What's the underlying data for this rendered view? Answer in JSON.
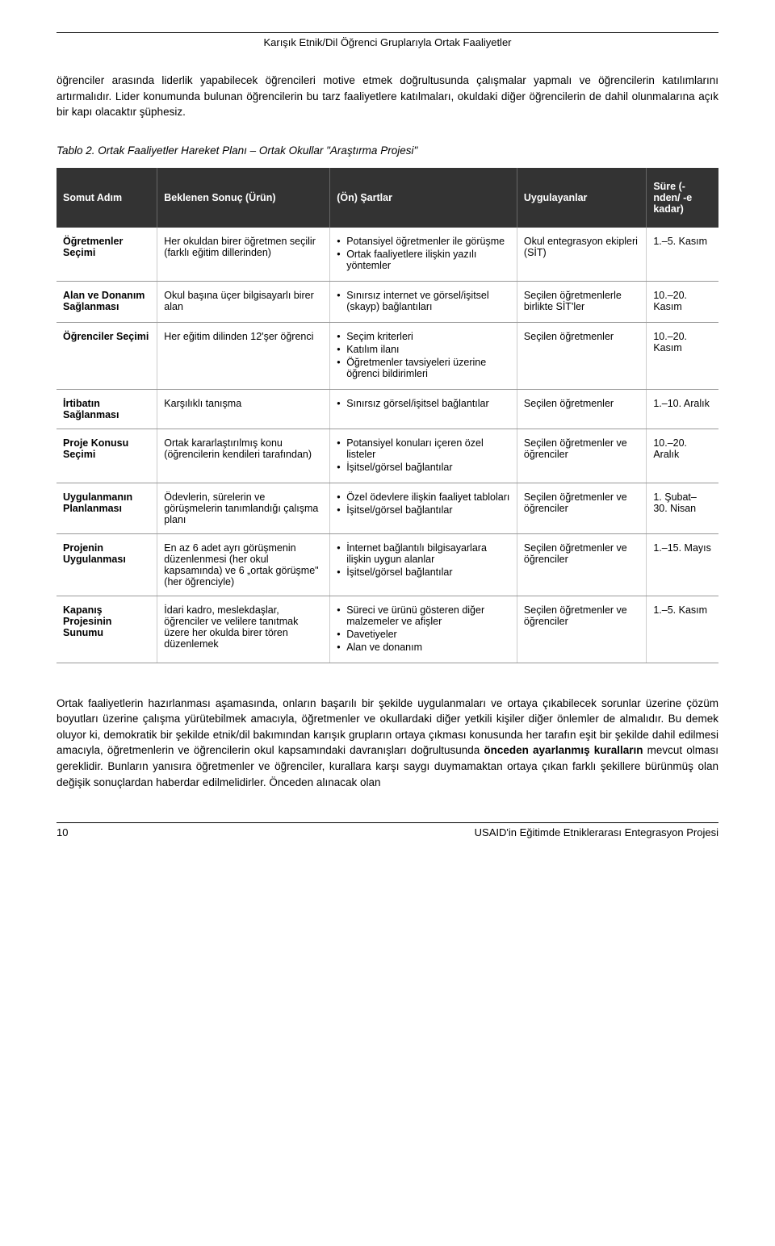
{
  "header": {
    "title": "Karışık Etnik/Dil Öğrenci Gruplarıyla Ortak Faaliyetler"
  },
  "intro": "öğrenciler arasında liderlik yapabilecek öğrencileri motive etmek doğrultusunda çalışmalar yapmalı ve öğrencilerin katılımlarını artırmalıdır. Lider konumunda bulunan öğrencilerin bu tarz faaliyetlere katılmaları, okuldaki diğer öğrencilerin de dahil olunmalarına açık bir kapı olacaktır şüphesiz.",
  "table_caption": "Tablo 2. Ortak Faaliyetler Hareket Planı – Ortak Okullar \"Araştırma Projesi\"",
  "columns": {
    "c1": "Somut Adım",
    "c2": "Beklenen Sonuç (Ürün)",
    "c3": "(Ön) Şartlar",
    "c4": "Uygulayanlar",
    "c5": "Süre (-nden/ -e kadar)"
  },
  "rows": [
    {
      "step": "Öğretmenler Seçimi",
      "result": "Her okuldan birer öğretmen seçilir (farklı eğitim dillerinden)",
      "precond": [
        "Potansiyel öğretmenler ile görüşme",
        "Ortak faaliyetlere ilişkin yazılı yöntemler"
      ],
      "impl": "Okul entegrasyon ekipleri (SİT)",
      "duration": "1.–5. Kasım"
    },
    {
      "step": "Alan ve Donanım Sağlanması",
      "result": "Okul başına üçer bilgisayarlı birer alan",
      "precond": [
        "Sınırsız internet ve görsel/işitsel (skayp) bağlantıları"
      ],
      "impl": "Seçilen öğretmenlerle birlikte SİT'ler",
      "duration": "10.–20. Kasım"
    },
    {
      "step": "Öğrenciler Seçimi",
      "result": "Her eğitim dilinden 12'şer öğrenci",
      "precond": [
        "Seçim kriterleri",
        "Katılım ilanı",
        "Öğretmenler tavsiyeleri üzerine öğrenci bildirimleri"
      ],
      "impl": "Seçilen öğretmenler",
      "duration": "10.–20. Kasım"
    },
    {
      "step": "İrtibatın Sağlanması",
      "result": "Karşılıklı tanışma",
      "precond": [
        "Sınırsız görsel/işitsel bağlantılar"
      ],
      "impl": "Seçilen öğretmenler",
      "duration": "1.–10. Aralık"
    },
    {
      "step": "Proje Konusu Seçimi",
      "result": "Ortak kararlaştırılmış konu (öğrencilerin kendileri tarafından)",
      "precond": [
        "Potansiyel konuları içeren özel listeler",
        "İşitsel/görsel bağlantılar"
      ],
      "impl": "Seçilen öğretmenler ve öğrenciler",
      "duration": "10.–20. Aralık"
    },
    {
      "step": "Uygulanmanın Planlanması",
      "result": "Ödevlerin, sürelerin ve görüşmelerin tanımlandığı çalışma planı",
      "precond": [
        "Özel ödevlere ilişkin faaliyet tabloları",
        "İşitsel/görsel bağlantılar"
      ],
      "impl": "Seçilen öğretmenler ve öğrenciler",
      "duration": "1. Şubat– 30. Nisan"
    },
    {
      "step": "Projenin Uygulanması",
      "result": "En az 6 adet ayrı görüşmenin düzenlenmesi (her okul kapsamında) ve 6 „ortak görüşme\" (her öğrenciyle)",
      "precond": [
        "İnternet bağlantılı bilgisayarlara ilişkin uygun alanlar",
        "İşitsel/görsel bağlantılar"
      ],
      "impl": "Seçilen öğretmenler ve öğrenciler",
      "duration": "1.–15. Mayıs"
    },
    {
      "step": "Kapanış Projesinin Sunumu",
      "result": "İdari kadro, meslekdaşlar, öğrenciler ve velilere tanıtmak üzere her okulda birer tören düzenlemek",
      "precond": [
        "Süreci ve ürünü gösteren diğer malzemeler ve afişler",
        "Davetiyeler",
        "Alan ve donanım"
      ],
      "impl": "Seçilen öğretmenler ve öğrenciler",
      "duration": "1.–5. Kasım"
    }
  ],
  "outro_before_bold": "Ortak faaliyetlerin hazırlanması aşamasında, onların başarılı bir şekilde uygulanmaları ve ortaya çıkabilecek sorunlar üzerine çözüm boyutları üzerine çalışma yürütebilmek amacıyla, öğretmenler ve okullardaki diğer yetkili kişiler diğer önlemler de almalıdır. Bu demek oluyor ki, demokratik bir şekilde etnik/dil bakımından karışık grupların ortaya çıkması konusunda her tarafın eşit bir şekilde dahil edilmesi amacıyla, öğretmenlerin ve öğrencilerin okul kapsamındaki davranışları doğrultusunda ",
  "outro_bold": "önceden ayarlanmış kuralların",
  "outro_after_bold": " mevcut olması gereklidir. Bunların yanısıra öğretmenler ve öğrenciler, kurallara karşı saygı duymamaktan ortaya çıkan farklı şekillere bürünmüş olan değişik sonuçlardan haberdar edilmelidirler. Önceden alınacak olan",
  "footer": {
    "page": "10",
    "project": "USAID'in Eğitimde Etniklerarası Entegrasyon Projesi"
  }
}
